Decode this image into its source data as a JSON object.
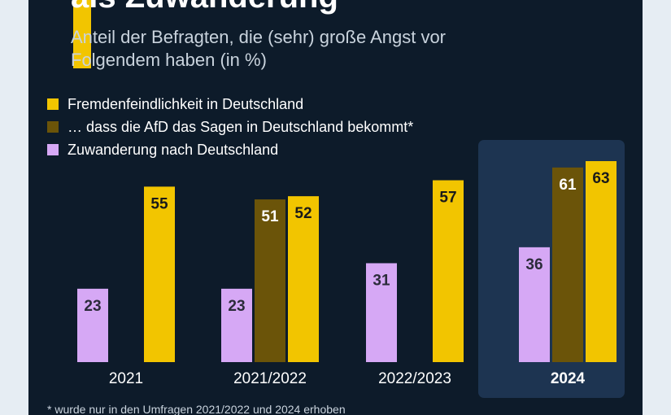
{
  "title": "als Zuwanderung",
  "subtitle": "Anteil der Befragten, die (sehr) große Angst vor Folgendem haben (in %)",
  "footnote": "* wurde nur in den Umfragen 2021/2022 und 2024 erhoben",
  "colors": {
    "accent": "#f2c500",
    "background": "#0d1b2a",
    "highlight": "#1d3451"
  },
  "chart_data": {
    "type": "bar",
    "title": "als Zuwanderung",
    "subtitle": "Anteil der Befragten, die (sehr) große Angst vor Folgendem haben (in %)",
    "xlabel": "",
    "ylabel": "",
    "ylim": [
      0,
      63
    ],
    "categories": [
      "2021",
      "2021/2022",
      "2022/2023",
      "2024"
    ],
    "highlight_category": "2024",
    "series": [
      {
        "name": "Zuwanderung nach Deutschland",
        "color": "#d6a8f5",
        "values": [
          23,
          23,
          31,
          36
        ]
      },
      {
        "name": "… dass die AfD das Sagen in Deutschland bekommt*",
        "color": "#6b5409",
        "values": [
          null,
          51,
          null,
          61
        ]
      },
      {
        "name": "Fremdenfeindlichkeit in Deutschland",
        "color": "#f2c500",
        "values": [
          55,
          52,
          57,
          63
        ]
      }
    ],
    "legend_order": [
      2,
      1,
      0
    ],
    "legend_position": "top-left"
  }
}
